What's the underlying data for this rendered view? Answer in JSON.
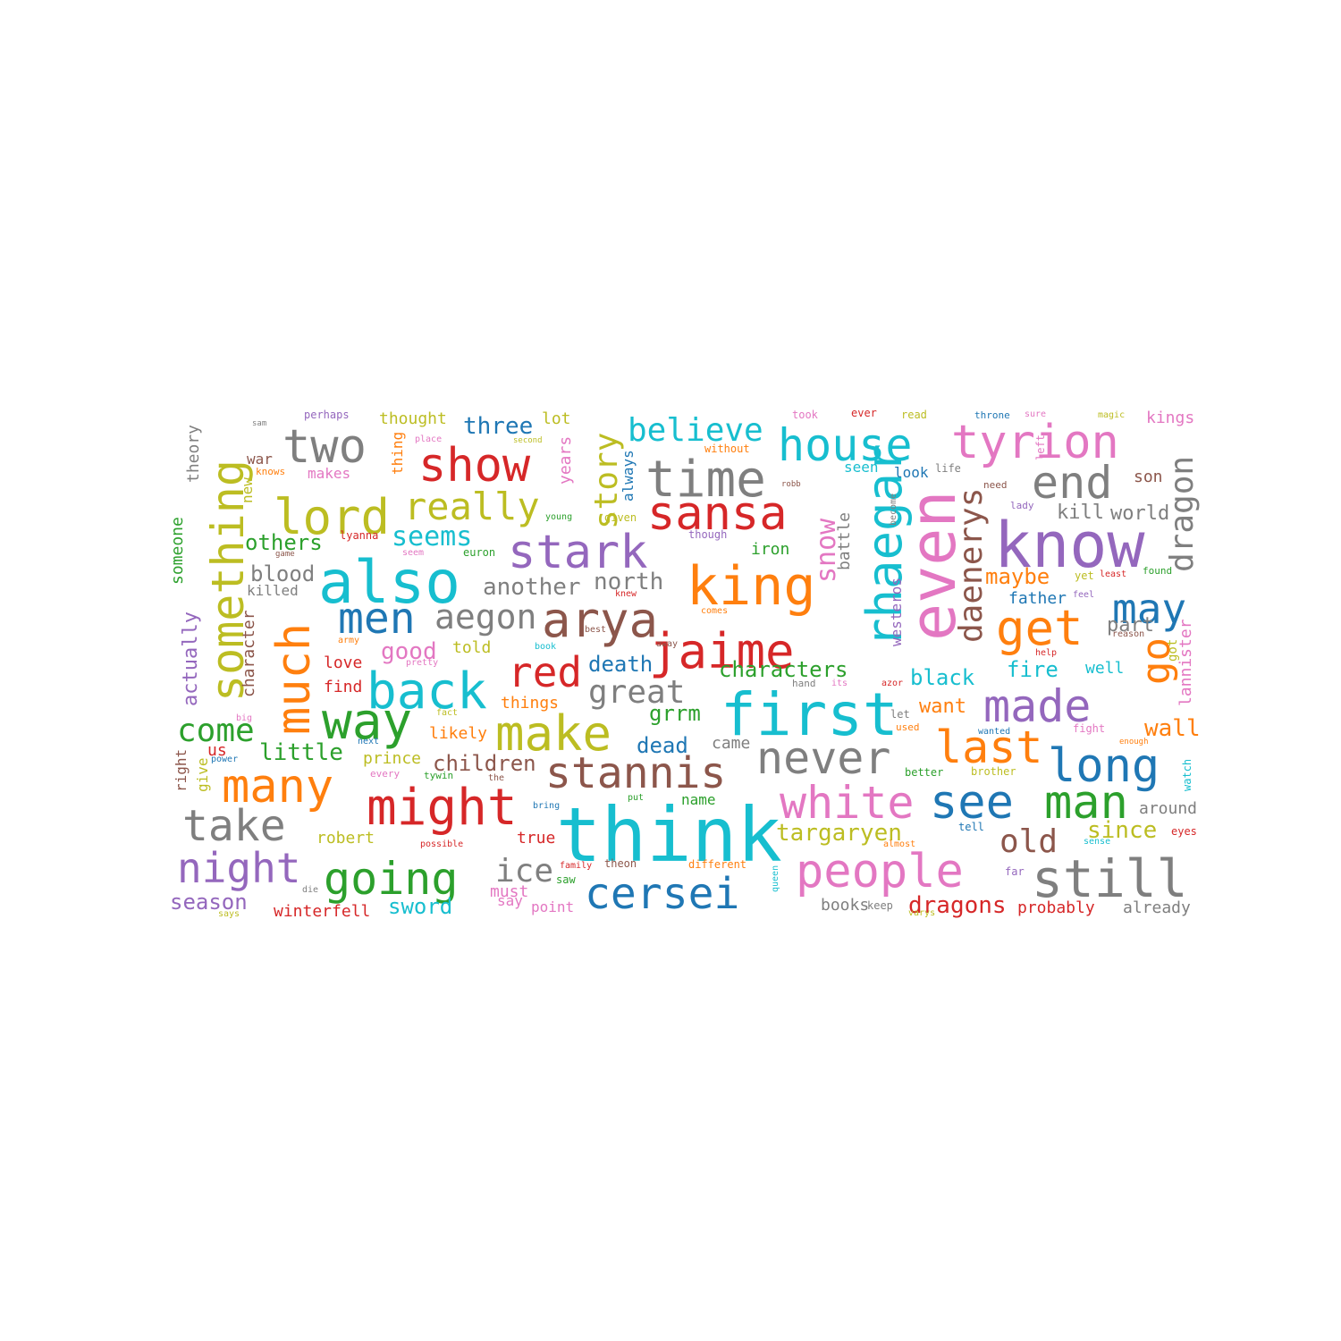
{
  "palette": {
    "blue": "#1f77b4",
    "orange": "#ff7f0e",
    "green": "#2ca02c",
    "red": "#d62728",
    "purple": "#9467bd",
    "brown": "#8c564b",
    "pink": "#e377c2",
    "gray": "#7f7f7f",
    "olive": "#bcbd22",
    "cyan": "#17becf"
  },
  "words": [
    {
      "text": "think",
      "color": "cyan"
    },
    {
      "text": "first",
      "color": "cyan"
    },
    {
      "text": "know",
      "color": "purple"
    },
    {
      "text": "even",
      "color": "pink"
    },
    {
      "text": "also",
      "color": "cyan"
    },
    {
      "text": "king",
      "color": "orange"
    },
    {
      "text": "people",
      "color": "pink"
    },
    {
      "text": "still",
      "color": "gray"
    },
    {
      "text": "cersei",
      "color": "blue"
    },
    {
      "text": "might",
      "color": "red"
    },
    {
      "text": "going",
      "color": "green"
    },
    {
      "text": "many",
      "color": "orange"
    },
    {
      "text": "see",
      "color": "blue"
    },
    {
      "text": "man",
      "color": "green"
    },
    {
      "text": "white",
      "color": "pink"
    },
    {
      "text": "long",
      "color": "blue"
    },
    {
      "text": "never",
      "color": "gray"
    },
    {
      "text": "stannis",
      "color": "brown"
    },
    {
      "text": "make",
      "color": "olive"
    },
    {
      "text": "way",
      "color": "green"
    },
    {
      "text": "back",
      "color": "cyan"
    },
    {
      "text": "made",
      "color": "purple"
    },
    {
      "text": "last",
      "color": "orange"
    },
    {
      "text": "jaime",
      "color": "red"
    },
    {
      "text": "arya",
      "color": "brown"
    },
    {
      "text": "rhaegar",
      "color": "cyan"
    },
    {
      "text": "much",
      "color": "orange"
    },
    {
      "text": "something",
      "color": "olive"
    },
    {
      "text": "house",
      "color": "cyan"
    },
    {
      "text": "tyrion",
      "color": "pink"
    },
    {
      "text": "sansa",
      "color": "red"
    },
    {
      "text": "time",
      "color": "gray"
    },
    {
      "text": "show",
      "color": "red"
    },
    {
      "text": "stark",
      "color": "purple"
    },
    {
      "text": "two",
      "color": "gray"
    },
    {
      "text": "lord",
      "color": "olive"
    },
    {
      "text": "end",
      "color": "gray"
    },
    {
      "text": "get",
      "color": "orange"
    },
    {
      "text": "may",
      "color": "blue"
    },
    {
      "text": "night",
      "color": "purple"
    },
    {
      "text": "take",
      "color": "gray"
    },
    {
      "text": "men",
      "color": "blue"
    },
    {
      "text": "red",
      "color": "red"
    },
    {
      "text": "go",
      "color": "orange"
    },
    {
      "text": "daenerys",
      "color": "brown"
    },
    {
      "text": "dragon",
      "color": "gray"
    },
    {
      "text": "great",
      "color": "gray"
    },
    {
      "text": "really",
      "color": "olive"
    },
    {
      "text": "aegon",
      "color": "gray"
    },
    {
      "text": "believe",
      "color": "cyan"
    },
    {
      "text": "old",
      "color": "brown"
    },
    {
      "text": "story",
      "color": "olive"
    },
    {
      "text": "ice",
      "color": "gray"
    },
    {
      "text": "dragons",
      "color": "red"
    },
    {
      "text": "snow",
      "color": "pink"
    },
    {
      "text": "come",
      "color": "green"
    },
    {
      "text": "seems",
      "color": "cyan"
    },
    {
      "text": "another",
      "color": "gray"
    },
    {
      "text": "north",
      "color": "gray"
    },
    {
      "text": "targaryen",
      "color": "olive"
    },
    {
      "text": "three",
      "color": "blue"
    },
    {
      "text": "little",
      "color": "green"
    },
    {
      "text": "children",
      "color": "brown"
    },
    {
      "text": "others",
      "color": "green"
    },
    {
      "text": "blood",
      "color": "gray"
    },
    {
      "text": "actually",
      "color": "purple"
    },
    {
      "text": "season",
      "color": "purple"
    },
    {
      "text": "characters",
      "color": "green"
    },
    {
      "text": "death",
      "color": "blue"
    },
    {
      "text": "good",
      "color": "pink"
    },
    {
      "text": "maybe",
      "color": "orange"
    },
    {
      "text": "black",
      "color": "cyan"
    },
    {
      "text": "fire",
      "color": "cyan"
    },
    {
      "text": "wall",
      "color": "orange"
    },
    {
      "text": "since",
      "color": "olive"
    },
    {
      "text": "dead",
      "color": "blue"
    },
    {
      "text": "grrm",
      "color": "green"
    },
    {
      "text": "sword",
      "color": "cyan"
    },
    {
      "text": "kill",
      "color": "gray"
    },
    {
      "text": "part",
      "color": "gray"
    },
    {
      "text": "want",
      "color": "orange"
    },
    {
      "text": "world",
      "color": "gray"
    },
    {
      "text": "battle",
      "color": "gray"
    },
    {
      "text": "iron",
      "color": "green"
    },
    {
      "text": "lannister",
      "color": "pink"
    },
    {
      "text": "father",
      "color": "blue"
    },
    {
      "text": "character",
      "color": "brown"
    },
    {
      "text": "someone",
      "color": "green"
    },
    {
      "text": "theory",
      "color": "gray"
    },
    {
      "text": "thought",
      "color": "olive"
    },
    {
      "text": "lot",
      "color": "olive"
    },
    {
      "text": "always",
      "color": "blue"
    },
    {
      "text": "years",
      "color": "pink"
    },
    {
      "text": "seen",
      "color": "cyan"
    },
    {
      "text": "look",
      "color": "blue"
    },
    {
      "text": "westeros",
      "color": "purple"
    },
    {
      "text": "son",
      "color": "brown"
    },
    {
      "text": "kings",
      "color": "pink"
    },
    {
      "text": "love",
      "color": "red"
    },
    {
      "text": "find",
      "color": "red"
    },
    {
      "text": "told",
      "color": "olive"
    },
    {
      "text": "things",
      "color": "orange"
    },
    {
      "text": "likely",
      "color": "orange"
    },
    {
      "text": "prince",
      "color": "olive"
    },
    {
      "text": "came",
      "color": "gray"
    },
    {
      "text": "well",
      "color": "cyan"
    },
    {
      "text": "winterfell",
      "color": "red"
    },
    {
      "text": "must",
      "color": "pink"
    },
    {
      "text": "true",
      "color": "red"
    },
    {
      "text": "name",
      "color": "green"
    },
    {
      "text": "robert",
      "color": "olive"
    },
    {
      "text": "around",
      "color": "gray"
    },
    {
      "text": "probably",
      "color": "red"
    },
    {
      "text": "already",
      "color": "gray"
    },
    {
      "text": "books",
      "color": "gray"
    },
    {
      "text": "point",
      "color": "pink"
    },
    {
      "text": "say",
      "color": "pink"
    },
    {
      "text": "us",
      "color": "red"
    },
    {
      "text": "give",
      "color": "olive"
    },
    {
      "text": "right",
      "color": "brown"
    },
    {
      "text": "killed",
      "color": "gray"
    },
    {
      "text": "makes",
      "color": "pink"
    },
    {
      "text": "war",
      "color": "brown"
    },
    {
      "text": "new",
      "color": "olive"
    },
    {
      "text": "thing",
      "color": "orange"
    },
    {
      "text": "perhaps",
      "color": "purple"
    },
    {
      "text": "got",
      "color": "olive"
    },
    {
      "text": "watch",
      "color": "cyan"
    },
    {
      "text": "lyanna",
      "color": "red"
    },
    {
      "text": "euron",
      "color": "green"
    },
    {
      "text": "young",
      "color": "green"
    },
    {
      "text": "given",
      "color": "olive"
    },
    {
      "text": "though",
      "color": "purple"
    },
    {
      "text": "without",
      "color": "orange"
    },
    {
      "text": "robb",
      "color": "brown"
    },
    {
      "text": "become",
      "color": "gray"
    },
    {
      "text": "life",
      "color": "gray"
    },
    {
      "text": "need",
      "color": "brown"
    },
    {
      "text": "lady",
      "color": "purple"
    },
    {
      "text": "left",
      "color": "pink"
    },
    {
      "text": "took",
      "color": "pink"
    },
    {
      "text": "ever",
      "color": "red"
    },
    {
      "text": "read",
      "color": "olive"
    },
    {
      "text": "throne",
      "color": "blue"
    },
    {
      "text": "sure",
      "color": "pink"
    },
    {
      "text": "magic",
      "color": "olive"
    },
    {
      "text": "sam",
      "color": "gray"
    },
    {
      "text": "place",
      "color": "pink"
    },
    {
      "text": "second",
      "color": "olive"
    },
    {
      "text": "knows",
      "color": "orange"
    },
    {
      "text": "game",
      "color": "brown"
    },
    {
      "text": "seem",
      "color": "pink"
    },
    {
      "text": "army",
      "color": "orange"
    },
    {
      "text": "pretty",
      "color": "pink"
    },
    {
      "text": "book",
      "color": "cyan"
    },
    {
      "text": "best",
      "color": "brown"
    },
    {
      "text": "away",
      "color": "brown"
    },
    {
      "text": "comes",
      "color": "orange"
    },
    {
      "text": "knew",
      "color": "red"
    },
    {
      "text": "hand",
      "color": "gray"
    },
    {
      "text": "its",
      "color": "pink"
    },
    {
      "text": "azor",
      "color": "red"
    },
    {
      "text": "let",
      "color": "gray"
    },
    {
      "text": "used",
      "color": "orange"
    },
    {
      "text": "wanted",
      "color": "blue"
    },
    {
      "text": "fight",
      "color": "pink"
    },
    {
      "text": "enough",
      "color": "orange"
    },
    {
      "text": "yet",
      "color": "olive"
    },
    {
      "text": "least",
      "color": "red"
    },
    {
      "text": "found",
      "color": "green"
    },
    {
      "text": "feel",
      "color": "purple"
    },
    {
      "text": "reason",
      "color": "brown"
    },
    {
      "text": "help",
      "color": "red"
    },
    {
      "text": "fact",
      "color": "olive"
    },
    {
      "text": "big",
      "color": "pink"
    },
    {
      "text": "power",
      "color": "blue"
    },
    {
      "text": "next",
      "color": "blue"
    },
    {
      "text": "every",
      "color": "pink"
    },
    {
      "text": "tywin",
      "color": "green"
    },
    {
      "text": "the",
      "color": "brown"
    },
    {
      "text": "bring",
      "color": "blue"
    },
    {
      "text": "put",
      "color": "green"
    },
    {
      "text": "better",
      "color": "green"
    },
    {
      "text": "brother",
      "color": "olive"
    },
    {
      "text": "tell",
      "color": "blue"
    },
    {
      "text": "almost",
      "color": "orange"
    },
    {
      "text": "sense",
      "color": "cyan"
    },
    {
      "text": "eyes",
      "color": "red"
    },
    {
      "text": "possible",
      "color": "red"
    },
    {
      "text": "family",
      "color": "red"
    },
    {
      "text": "theon",
      "color": "brown"
    },
    {
      "text": "different",
      "color": "orange"
    },
    {
      "text": "queen",
      "color": "cyan"
    },
    {
      "text": "far",
      "color": "purple"
    },
    {
      "text": "saw",
      "color": "green"
    },
    {
      "text": "die",
      "color": "gray"
    },
    {
      "text": "says",
      "color": "olive"
    },
    {
      "text": "keep",
      "color": "gray"
    },
    {
      "text": "varys",
      "color": "olive"
    }
  ]
}
